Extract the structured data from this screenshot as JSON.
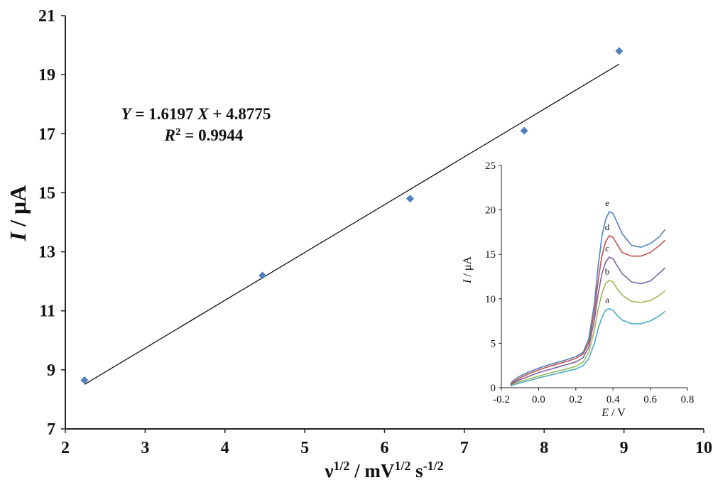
{
  "chart_data": [
    {
      "type": "scatter",
      "xlabel_parts": [
        "ν",
        "1/2",
        " / mV",
        "1/2",
        " s",
        "-1/2"
      ],
      "ylabel_parts": [
        "I",
        " / μA"
      ],
      "xlim": [
        2,
        10
      ],
      "ylim": [
        7,
        21
      ],
      "xticks": [
        "2",
        "3",
        "4",
        "5",
        "6",
        "7",
        "8",
        "9",
        "10"
      ],
      "yticks": [
        "7",
        "9",
        "11",
        "13",
        "15",
        "17",
        "19",
        "21"
      ],
      "series": [
        {
          "x": [
            2.24,
            4.47,
            6.32,
            7.75,
            8.94
          ],
          "y": [
            8.65,
            12.2,
            14.8,
            17.1,
            19.8
          ],
          "color": "#4f81bd",
          "marker": "diamond"
        }
      ],
      "fit_line": {
        "slope": 1.6197,
        "intercept": 4.8775,
        "x_range": [
          2.24,
          8.94
        ],
        "color": "#000000"
      },
      "equation": {
        "line1_parts": [
          "Y",
          " = 1.6197 ",
          "X",
          " + 4.8775"
        ],
        "line2_parts": [
          "R",
          "2",
          " = 0.9944"
        ]
      },
      "grid": false
    },
    {
      "type": "line",
      "role": "inset",
      "xlabel_parts": [
        "E",
        " / V"
      ],
      "ylabel_parts": [
        "I",
        " / μA"
      ],
      "xlim": [
        -0.2,
        0.8
      ],
      "ylim": [
        0,
        25
      ],
      "xticks": [
        "-0.2",
        "0.0",
        "0.2",
        "0.4",
        "0.6",
        "0.8"
      ],
      "yticks": [
        "0",
        "5",
        "10",
        "15",
        "20",
        "25"
      ],
      "series": [
        {
          "label": "a",
          "color": "#4bacc6",
          "x": [
            -0.15,
            -0.13,
            -0.1,
            -0.05,
            0.0,
            0.05,
            0.1,
            0.15,
            0.2,
            0.24,
            0.27,
            0.3,
            0.32,
            0.34,
            0.36,
            0.38,
            0.4,
            0.42,
            0.45,
            0.5,
            0.55,
            0.6,
            0.65,
            0.68
          ],
          "y": [
            0.2,
            0.35,
            0.55,
            0.8,
            1.1,
            1.35,
            1.6,
            1.85,
            2.1,
            2.5,
            3.3,
            5.0,
            6.6,
            7.9,
            8.7,
            8.9,
            8.7,
            8.2,
            7.6,
            7.2,
            7.2,
            7.5,
            8.1,
            8.6
          ]
        },
        {
          "label": "b",
          "color": "#9bbb59",
          "x": [
            -0.15,
            -0.13,
            -0.1,
            -0.05,
            0.0,
            0.05,
            0.1,
            0.15,
            0.2,
            0.24,
            0.27,
            0.3,
            0.32,
            0.34,
            0.36,
            0.38,
            0.4,
            0.42,
            0.45,
            0.5,
            0.55,
            0.6,
            0.65,
            0.68
          ],
          "y": [
            0.3,
            0.45,
            0.7,
            1.0,
            1.3,
            1.6,
            1.85,
            2.1,
            2.4,
            2.9,
            4.0,
            6.5,
            8.8,
            10.6,
            11.7,
            12.1,
            11.9,
            11.2,
            10.4,
            9.7,
            9.6,
            9.8,
            10.4,
            10.9
          ]
        },
        {
          "label": "c",
          "color": "#8064a2",
          "x": [
            -0.15,
            -0.13,
            -0.1,
            -0.05,
            0.0,
            0.05,
            0.1,
            0.15,
            0.2,
            0.24,
            0.27,
            0.3,
            0.32,
            0.34,
            0.36,
            0.38,
            0.4,
            0.42,
            0.45,
            0.5,
            0.55,
            0.6,
            0.65,
            0.68
          ],
          "y": [
            0.3,
            0.6,
            0.9,
            1.3,
            1.7,
            2.0,
            2.3,
            2.6,
            2.9,
            3.4,
            4.6,
            7.6,
            10.5,
            12.8,
            14.1,
            14.7,
            14.5,
            13.8,
            12.8,
            11.9,
            11.7,
            12.0,
            12.9,
            13.5
          ]
        },
        {
          "label": "d",
          "color": "#c0504d",
          "x": [
            -0.15,
            -0.13,
            -0.1,
            -0.05,
            0.0,
            0.05,
            0.1,
            0.15,
            0.2,
            0.24,
            0.27,
            0.3,
            0.32,
            0.34,
            0.36,
            0.38,
            0.4,
            0.42,
            0.45,
            0.5,
            0.55,
            0.6,
            0.65,
            0.68
          ],
          "y": [
            0.4,
            0.7,
            1.1,
            1.6,
            2.0,
            2.35,
            2.65,
            2.95,
            3.3,
            3.8,
            5.1,
            8.5,
            12.0,
            14.8,
            16.4,
            17.1,
            16.9,
            16.2,
            15.2,
            14.8,
            14.8,
            15.2,
            16.0,
            16.6
          ]
        },
        {
          "label": "e",
          "color": "#4f81bd",
          "x": [
            -0.15,
            -0.13,
            -0.1,
            -0.05,
            0.0,
            0.05,
            0.1,
            0.15,
            0.2,
            0.24,
            0.27,
            0.3,
            0.32,
            0.34,
            0.36,
            0.38,
            0.4,
            0.42,
            0.45,
            0.5,
            0.55,
            0.6,
            0.65,
            0.68
          ],
          "y": [
            0.5,
            0.9,
            1.3,
            1.8,
            2.2,
            2.55,
            2.85,
            3.15,
            3.5,
            4.0,
            5.5,
            9.5,
            13.6,
            17.0,
            18.9,
            19.8,
            19.6,
            18.7,
            17.3,
            16.0,
            15.8,
            16.2,
            17.0,
            17.8
          ]
        }
      ],
      "grid": false
    }
  ]
}
